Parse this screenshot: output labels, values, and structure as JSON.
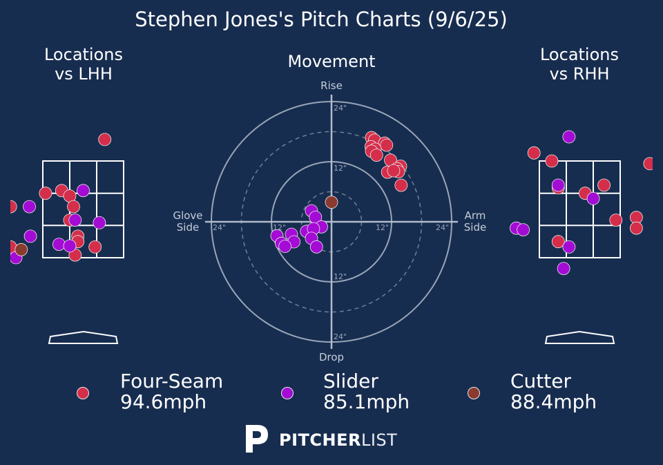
{
  "title": "Stephen Jones's Pitch Charts (9/6/25)",
  "panels": {
    "lhh_title_line1": "Locations",
    "lhh_title_line2": "vs LHH",
    "movement_title": "Movement",
    "rhh_title_line1": "Locations",
    "rhh_title_line2": "vs RHH"
  },
  "movement_axis": {
    "top": "Rise",
    "bottom": "Drop",
    "left_line1": "Glove",
    "left_line2": "Side",
    "right_line1": "Arm",
    "right_line2": "Side",
    "ring_labels": [
      "12\"",
      "24\""
    ]
  },
  "colors": {
    "background": "#172d50",
    "Four-Seam": "#d42e4b",
    "Slider": "#a40bd4",
    "Cutter": "#8b3a2f"
  },
  "legend": [
    {
      "pitch": "Four-Seam",
      "speed": "94.6mph"
    },
    {
      "pitch": "Slider",
      "speed": "85.1mph"
    },
    {
      "pitch": "Cutter",
      "speed": "88.4mph"
    }
  ],
  "logo": {
    "bold": "PITCHER",
    "light": "LIST"
  },
  "chart_data": [
    {
      "type": "scatter",
      "name": "Locations vs LHH",
      "xlim": [
        -1.5,
        1.5
      ],
      "ylim": [
        0.0,
        5.5
      ],
      "strike_zone": {
        "x": [
          -0.75,
          0.75
        ],
        "y": [
          1.6,
          3.4
        ]
      },
      "points": [
        {
          "pitch": "Four-Seam",
          "x": 0.4,
          "y": 3.8
        },
        {
          "pitch": "Four-Seam",
          "x": -0.7,
          "y": 2.8
        },
        {
          "pitch": "Four-Seam",
          "x": -0.4,
          "y": 2.85
        },
        {
          "pitch": "Four-Seam",
          "x": -0.25,
          "y": 2.75
        },
        {
          "pitch": "Four-Seam",
          "x": -0.18,
          "y": 2.55
        },
        {
          "pitch": "Four-Seam",
          "x": -0.25,
          "y": 2.3
        },
        {
          "pitch": "Four-Seam",
          "x": -0.1,
          "y": 2.0
        },
        {
          "pitch": "Four-Seam",
          "x": -0.1,
          "y": 1.9
        },
        {
          "pitch": "Four-Seam",
          "x": 0.22,
          "y": 1.8
        },
        {
          "pitch": "Four-Seam",
          "x": -0.15,
          "y": 1.65
        },
        {
          "pitch": "Four-Seam",
          "x": -1.35,
          "y": 2.55
        },
        {
          "pitch": "Four-Seam",
          "x": -1.35,
          "y": 1.8
        },
        {
          "pitch": "Slider",
          "x": 0.0,
          "y": 2.85
        },
        {
          "pitch": "Slider",
          "x": -1.0,
          "y": 2.55
        },
        {
          "pitch": "Slider",
          "x": -0.15,
          "y": 2.3
        },
        {
          "pitch": "Slider",
          "x": 0.3,
          "y": 2.25
        },
        {
          "pitch": "Slider",
          "x": -0.98,
          "y": 2.0
        },
        {
          "pitch": "Slider",
          "x": -0.45,
          "y": 1.85
        },
        {
          "pitch": "Slider",
          "x": -0.25,
          "y": 1.82
        },
        {
          "pitch": "Slider",
          "x": -1.25,
          "y": 1.6
        },
        {
          "pitch": "Cutter",
          "x": -1.15,
          "y": 1.75
        }
      ]
    },
    {
      "type": "scatter",
      "name": "Movement",
      "xlabel_left": "Glove Side",
      "xlabel_right": "Arm Side",
      "ylabel_top": "Rise",
      "ylabel_bottom": "Drop",
      "xlim": [
        -24,
        24
      ],
      "ylim": [
        -24,
        24
      ],
      "units": "inches",
      "rings": [
        6,
        12,
        18,
        24
      ],
      "points": [
        {
          "pitch": "Four-Seam",
          "x": 8.0,
          "y": 16.8
        },
        {
          "pitch": "Four-Seam",
          "x": 8.6,
          "y": 16.3
        },
        {
          "pitch": "Four-Seam",
          "x": 10.6,
          "y": 15.7
        },
        {
          "pitch": "Four-Seam",
          "x": 11.0,
          "y": 15.3
        },
        {
          "pitch": "Four-Seam",
          "x": 7.9,
          "y": 15.0
        },
        {
          "pitch": "Four-Seam",
          "x": 8.7,
          "y": 14.5
        },
        {
          "pitch": "Four-Seam",
          "x": 8.0,
          "y": 14.1
        },
        {
          "pitch": "Four-Seam",
          "x": 9.0,
          "y": 13.3
        },
        {
          "pitch": "Four-Seam",
          "x": 11.8,
          "y": 12.3
        },
        {
          "pitch": "Four-Seam",
          "x": 13.8,
          "y": 11.1
        },
        {
          "pitch": "Four-Seam",
          "x": 13.1,
          "y": 10.6
        },
        {
          "pitch": "Four-Seam",
          "x": 11.2,
          "y": 9.9
        },
        {
          "pitch": "Four-Seam",
          "x": 13.4,
          "y": 10.0
        },
        {
          "pitch": "Four-Seam",
          "x": 12.4,
          "y": 10.2
        },
        {
          "pitch": "Four-Seam",
          "x": 13.9,
          "y": 7.3
        },
        {
          "pitch": "Slider",
          "x": -4.0,
          "y": 2.2
        },
        {
          "pitch": "Slider",
          "x": -3.2,
          "y": 0.9
        },
        {
          "pitch": "Slider",
          "x": -5.0,
          "y": -1.9
        },
        {
          "pitch": "Slider",
          "x": -2.0,
          "y": -1.0
        },
        {
          "pitch": "Slider",
          "x": -10.9,
          "y": -2.8
        },
        {
          "pitch": "Slider",
          "x": -8.0,
          "y": -2.5
        },
        {
          "pitch": "Slider",
          "x": -3.6,
          "y": -1.4
        },
        {
          "pitch": "Slider",
          "x": -7.5,
          "y": -4.0
        },
        {
          "pitch": "Slider",
          "x": -10.0,
          "y": -4.3
        },
        {
          "pitch": "Slider",
          "x": -9.3,
          "y": -4.9
        },
        {
          "pitch": "Slider",
          "x": -4.0,
          "y": -3.3
        },
        {
          "pitch": "Slider",
          "x": -3.0,
          "y": -5.0
        },
        {
          "pitch": "Cutter",
          "x": 0.0,
          "y": 3.9
        }
      ]
    },
    {
      "type": "scatter",
      "name": "Locations vs RHH",
      "xlim": [
        -1.5,
        1.5
      ],
      "ylim": [
        0.0,
        5.5
      ],
      "strike_zone": {
        "x": [
          -0.75,
          0.75
        ],
        "y": [
          1.6,
          3.4
        ]
      },
      "points": [
        {
          "pitch": "Four-Seam",
          "x": -0.85,
          "y": 3.55
        },
        {
          "pitch": "Four-Seam",
          "x": -0.52,
          "y": 3.4
        },
        {
          "pitch": "Four-Seam",
          "x": -0.4,
          "y": 2.9
        },
        {
          "pitch": "Four-Seam",
          "x": 0.1,
          "y": 2.8
        },
        {
          "pitch": "Four-Seam",
          "x": 0.45,
          "y": 2.95
        },
        {
          "pitch": "Four-Seam",
          "x": 1.3,
          "y": 3.35
        },
        {
          "pitch": "Four-Seam",
          "x": 1.05,
          "y": 2.35
        },
        {
          "pitch": "Four-Seam",
          "x": 0.67,
          "y": 2.3
        },
        {
          "pitch": "Four-Seam",
          "x": 1.05,
          "y": 2.15
        },
        {
          "pitch": "Four-Seam",
          "x": -0.4,
          "y": 1.9
        },
        {
          "pitch": "Slider",
          "x": -0.2,
          "y": 3.85
        },
        {
          "pitch": "Slider",
          "x": -0.4,
          "y": 2.95
        },
        {
          "pitch": "Slider",
          "x": 0.25,
          "y": 2.7
        },
        {
          "pitch": "Slider",
          "x": -1.18,
          "y": 2.15
        },
        {
          "pitch": "Slider",
          "x": -1.05,
          "y": 2.12
        },
        {
          "pitch": "Slider",
          "x": -0.2,
          "y": 1.8
        },
        {
          "pitch": "Slider",
          "x": -0.3,
          "y": 1.4
        }
      ]
    }
  ]
}
